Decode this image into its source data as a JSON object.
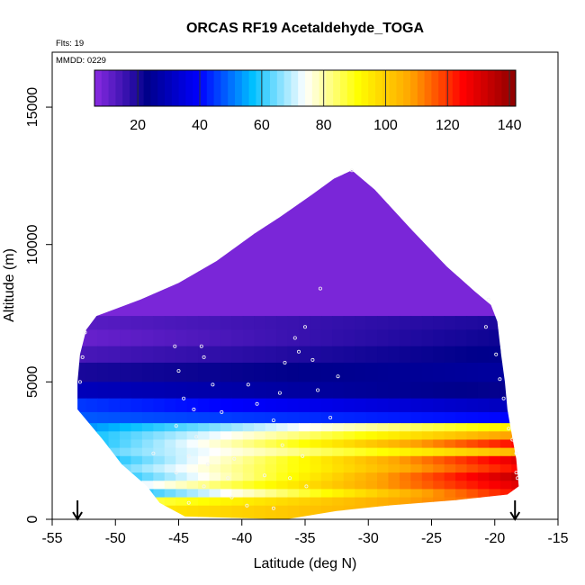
{
  "header": {
    "title": "ORCAS RF19 Acetaldehyde_TOGA",
    "flights_note": "Flts: 19",
    "date_note": "MMDD: 0229"
  },
  "chart_data": {
    "type": "heatmap",
    "title": "ORCAS RF19 Acetaldehyde_TOGA",
    "xlabel": "Latitude (deg N)",
    "ylabel": "Altitude (m)",
    "xlim": [
      -55,
      -15
    ],
    "ylim": [
      0,
      17000
    ],
    "x_ticks": [
      -55,
      -50,
      -45,
      -40,
      -35,
      -30,
      -25,
      -20,
      -15
    ],
    "y_ticks": [
      0,
      5000,
      10000,
      15000
    ],
    "grid": false,
    "colorbar": {
      "placement": "top-inside",
      "range": [
        6,
        142
      ],
      "ticks": [
        20,
        40,
        60,
        80,
        100,
        120,
        140
      ],
      "colors": [
        "#8a2be2",
        "#00008b",
        "#0000ff",
        "#00bfff",
        "#ffffff",
        "#ffff00",
        "#ffa500",
        "#ff0000",
        "#8b0000"
      ]
    },
    "colorbar_tick_labels": [
      "20",
      "40",
      "60",
      "80",
      "100",
      "120",
      "140"
    ],
    "x_tick_labels": [
      "-55",
      "-50",
      "-45",
      "-40",
      "-35",
      "-30",
      "-25",
      "-20",
      "-15"
    ],
    "y_tick_labels": [
      "0",
      "5000",
      "10000",
      "15000"
    ],
    "domain_outline": [
      [
        -52.3,
        6900
      ],
      [
        -51.5,
        7400
      ],
      [
        -48,
        8000
      ],
      [
        -45,
        8600
      ],
      [
        -42,
        9400
      ],
      [
        -39,
        10400
      ],
      [
        -37,
        11000
      ],
      [
        -34.5,
        11800
      ],
      [
        -32.7,
        12400
      ],
      [
        -31.3,
        12700
      ],
      [
        -29.5,
        12000
      ],
      [
        -26.5,
        10500
      ],
      [
        -23.8,
        9200
      ],
      [
        -21.6,
        8300
      ],
      [
        -20.3,
        7800
      ],
      [
        -19.8,
        7200
      ],
      [
        -19.5,
        6000
      ],
      [
        -19.2,
        5000
      ],
      [
        -19.0,
        4000
      ],
      [
        -18.7,
        3200
      ],
      [
        -18.3,
        2200
      ],
      [
        -18.1,
        1200
      ],
      [
        -19.0,
        900
      ],
      [
        -23.0,
        700
      ],
      [
        -28.5,
        500
      ],
      [
        -32.5,
        300
      ],
      [
        -36.5,
        0
      ],
      [
        -44.5,
        100
      ],
      [
        -46.5,
        600
      ],
      [
        -47.5,
        1200
      ],
      [
        -49.5,
        2000
      ],
      [
        -51.0,
        2900
      ],
      [
        -53.0,
        4000
      ],
      [
        -53.0,
        5000
      ],
      [
        -52.8,
        6000
      ]
    ],
    "layers": [
      {
        "y0": 12700,
        "y1": 7400,
        "v0": 8,
        "v1": 8
      },
      {
        "y0": 7400,
        "y1": 6900,
        "v0": 12,
        "v1": 20
      },
      {
        "y0": 6900,
        "y1": 6300,
        "v0": 10,
        "v1": 22
      },
      {
        "y0": 6300,
        "y1": 5700,
        "v0": 14,
        "v1": 24
      },
      {
        "y0": 5700,
        "y1": 5000,
        "v0": 20,
        "v1": 26
      },
      {
        "y0": 5000,
        "y1": 4400,
        "v0": 30,
        "v1": 22
      },
      {
        "y0": 4400,
        "y1": 3900,
        "v0": 45,
        "v1": 30
      },
      {
        "y0": 3900,
        "y1": 3500,
        "v0": 48,
        "v1": 40
      },
      {
        "y0": 3500,
        "y1": 3200,
        "v0": 52,
        "v1": 95
      },
      {
        "y0": 3200,
        "y1": 2900,
        "v0": 56,
        "v1": 110
      },
      {
        "y0": 2900,
        "y1": 2600,
        "v0": 55,
        "v1": 125
      },
      {
        "y0": 2600,
        "y1": 2300,
        "v0": 60,
        "v1": 105
      },
      {
        "y0": 2300,
        "y1": 2000,
        "v0": 52,
        "v1": 130
      },
      {
        "y0": 2000,
        "y1": 1700,
        "v0": 57,
        "v1": 125
      },
      {
        "y0": 1700,
        "y1": 1400,
        "v0": 50,
        "v1": 135
      },
      {
        "y0": 1400,
        "y1": 1100,
        "v0": 62,
        "v1": 130
      },
      {
        "y0": 1100,
        "y1": 800,
        "v0": 48,
        "v1": 125
      },
      {
        "y0": 800,
        "y1": 500,
        "v0": 80,
        "v1": 118
      },
      {
        "y0": 500,
        "y1": 0,
        "v0": 92,
        "v1": 112
      }
    ],
    "sample_points": [
      [
        -52.4,
        6800
      ],
      [
        -52.6,
        5900
      ],
      [
        -52.8,
        5000
      ],
      [
        -45.3,
        6300
      ],
      [
        -43.2,
        6300
      ],
      [
        -43.0,
        5900
      ],
      [
        -45.0,
        5400
      ],
      [
        -42.3,
        4900
      ],
      [
        -44.6,
        4400
      ],
      [
        -43.8,
        4000
      ],
      [
        -41.6,
        3900
      ],
      [
        -45.2,
        3400
      ],
      [
        -43.6,
        3000
      ],
      [
        -47.0,
        2400
      ],
      [
        -44.2,
        2300
      ],
      [
        -42.7,
        2000
      ],
      [
        -40.6,
        2200
      ],
      [
        -36.8,
        2700
      ],
      [
        -35.2,
        2300
      ],
      [
        -38.2,
        1600
      ],
      [
        -36.2,
        1500
      ],
      [
        -34.9,
        1200
      ],
      [
        -41.1,
        1500
      ],
      [
        -43.0,
        1200
      ],
      [
        -45.2,
        1700
      ],
      [
        -44.2,
        600
      ],
      [
        -40.8,
        800
      ],
      [
        -39.6,
        500
      ],
      [
        -37.5,
        400
      ],
      [
        -35.0,
        7000
      ],
      [
        -35.8,
        6600
      ],
      [
        -33.8,
        8400
      ],
      [
        -35.5,
        6100
      ],
      [
        -34.4,
        5800
      ],
      [
        -34.0,
        4700
      ],
      [
        -32.4,
        5200
      ],
      [
        -31.3,
        12700
      ],
      [
        -20.5,
        8000
      ],
      [
        -20.7,
        7000
      ],
      [
        -19.9,
        6000
      ],
      [
        -19.6,
        5100
      ],
      [
        -19.3,
        4400
      ],
      [
        -18.9,
        3300
      ],
      [
        -18.6,
        2900
      ],
      [
        -18.3,
        2400
      ],
      [
        -18.3,
        1700
      ],
      [
        -18.2,
        1500
      ],
      [
        -33.0,
        3700
      ],
      [
        -37.5,
        3600
      ],
      [
        -39.5,
        4900
      ],
      [
        -37.0,
        4600
      ],
      [
        -38.8,
        4200
      ],
      [
        -36.6,
        5700
      ]
    ],
    "flight_markers": [
      -53.0,
      -18.4
    ]
  }
}
